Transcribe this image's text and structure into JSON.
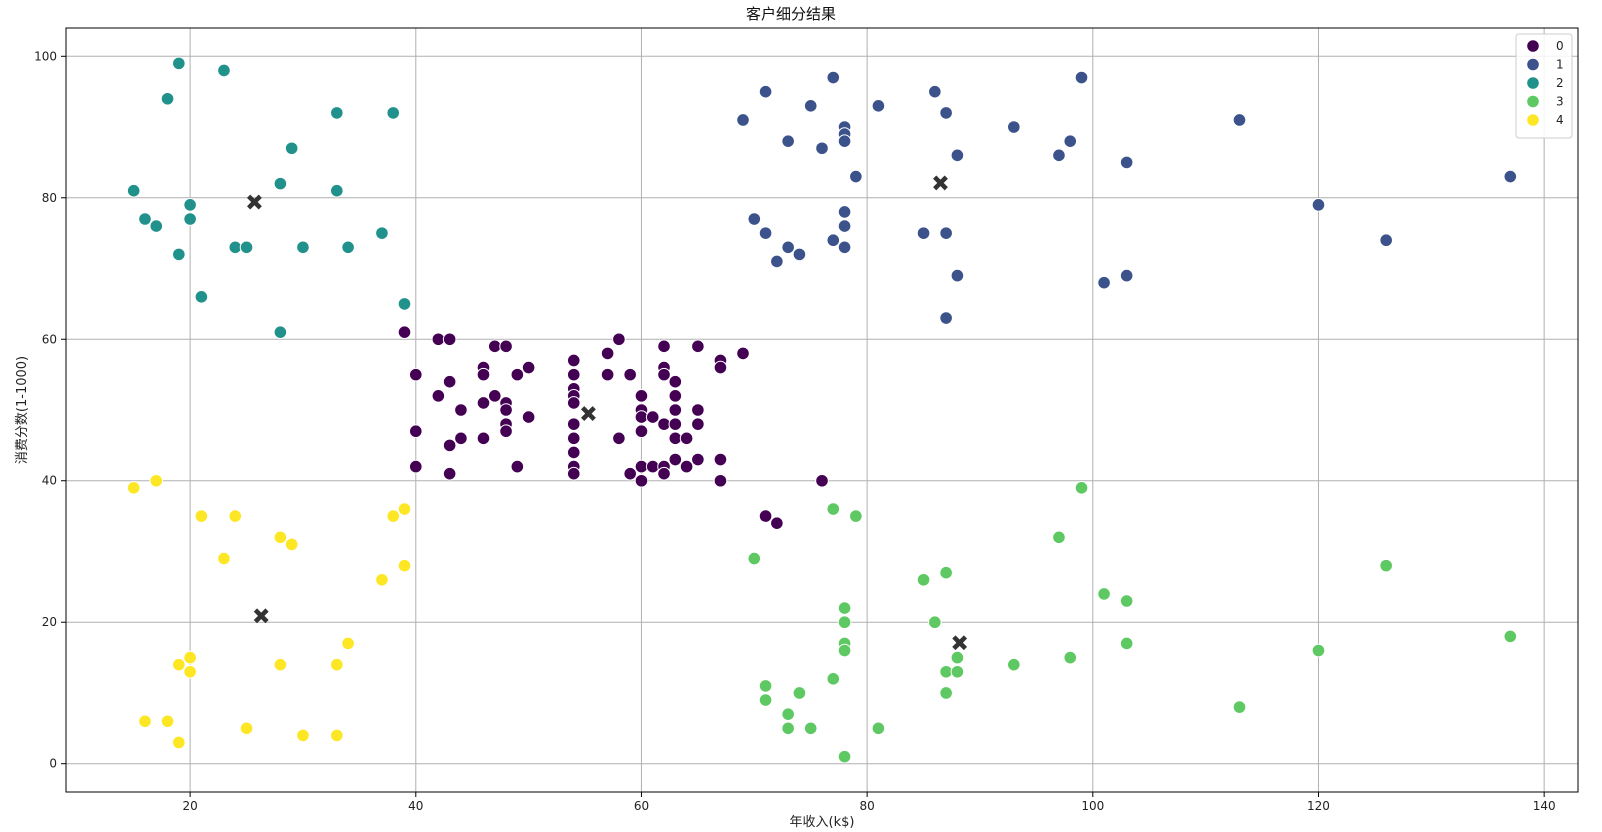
{
  "chart_data": {
    "type": "scatter",
    "title": "客户细分结果",
    "xlabel": "年收入(k$)",
    "ylabel": "消费分数(1-1000)",
    "xlim": [
      9,
      143
    ],
    "ylim": [
      -4,
      104
    ],
    "xticks": [
      20,
      40,
      60,
      80,
      100,
      120,
      140
    ],
    "yticks": [
      0,
      20,
      40,
      60,
      80,
      100
    ],
    "grid": true,
    "legend_position": "top-right",
    "series": [
      {
        "name": "0",
        "color": "#440154",
        "points": [
          [
            39,
            61
          ],
          [
            40,
            55
          ],
          [
            40,
            47
          ],
          [
            40,
            42
          ],
          [
            42,
            52
          ],
          [
            42,
            60
          ],
          [
            43,
            60
          ],
          [
            43,
            54
          ],
          [
            43,
            45
          ],
          [
            43,
            41
          ],
          [
            44,
            50
          ],
          [
            44,
            46
          ],
          [
            46,
            56
          ],
          [
            46,
            55
          ],
          [
            46,
            51
          ],
          [
            46,
            46
          ],
          [
            47,
            59
          ],
          [
            47,
            52
          ],
          [
            48,
            59
          ],
          [
            48,
            51
          ],
          [
            48,
            50
          ],
          [
            48,
            48
          ],
          [
            48,
            47
          ],
          [
            49,
            55
          ],
          [
            49,
            42
          ],
          [
            50,
            56
          ],
          [
            50,
            49
          ],
          [
            54,
            57
          ],
          [
            54,
            55
          ],
          [
            54,
            53
          ],
          [
            54,
            52
          ],
          [
            54,
            51
          ],
          [
            54,
            48
          ],
          [
            54,
            46
          ],
          [
            54,
            44
          ],
          [
            54,
            42
          ],
          [
            54,
            41
          ],
          [
            57,
            58
          ],
          [
            57,
            55
          ],
          [
            58,
            60
          ],
          [
            58,
            46
          ],
          [
            59,
            55
          ],
          [
            59,
            41
          ],
          [
            60,
            52
          ],
          [
            60,
            50
          ],
          [
            60,
            49
          ],
          [
            60,
            47
          ],
          [
            60,
            42
          ],
          [
            60,
            40
          ],
          [
            61,
            49
          ],
          [
            61,
            42
          ],
          [
            62,
            59
          ],
          [
            62,
            56
          ],
          [
            62,
            55
          ],
          [
            62,
            48
          ],
          [
            62,
            42
          ],
          [
            62,
            41
          ],
          [
            63,
            54
          ],
          [
            63,
            52
          ],
          [
            63,
            50
          ],
          [
            63,
            48
          ],
          [
            63,
            46
          ],
          [
            63,
            43
          ],
          [
            64,
            46
          ],
          [
            64,
            42
          ],
          [
            65,
            59
          ],
          [
            65,
            50
          ],
          [
            65,
            48
          ],
          [
            65,
            43
          ],
          [
            67,
            57
          ],
          [
            67,
            56
          ],
          [
            67,
            43
          ],
          [
            67,
            40
          ],
          [
            69,
            58
          ],
          [
            71,
            35
          ],
          [
            72,
            34
          ],
          [
            76,
            40
          ]
        ]
      },
      {
        "name": "1",
        "color": "#3b528b",
        "points": [
          [
            69,
            91
          ],
          [
            70,
            77
          ],
          [
            71,
            95
          ],
          [
            71,
            75
          ],
          [
            72,
            71
          ],
          [
            73,
            88
          ],
          [
            73,
            73
          ],
          [
            74,
            72
          ],
          [
            75,
            93
          ],
          [
            76,
            87
          ],
          [
            77,
            97
          ],
          [
            77,
            74
          ],
          [
            78,
            90
          ],
          [
            78,
            89
          ],
          [
            78,
            88
          ],
          [
            78,
            78
          ],
          [
            78,
            76
          ],
          [
            78,
            73
          ],
          [
            79,
            83
          ],
          [
            81,
            93
          ],
          [
            85,
            75
          ],
          [
            86,
            95
          ],
          [
            87,
            92
          ],
          [
            87,
            75
          ],
          [
            87,
            63
          ],
          [
            88,
            86
          ],
          [
            88,
            69
          ],
          [
            93,
            90
          ],
          [
            97,
            86
          ],
          [
            98,
            88
          ],
          [
            99,
            97
          ],
          [
            101,
            68
          ],
          [
            103,
            85
          ],
          [
            103,
            69
          ],
          [
            113,
            91
          ],
          [
            120,
            79
          ],
          [
            126,
            74
          ],
          [
            137,
            83
          ]
        ]
      },
      {
        "name": "2",
        "color": "#21918c",
        "points": [
          [
            15,
            81
          ],
          [
            16,
            77
          ],
          [
            17,
            76
          ],
          [
            18,
            94
          ],
          [
            19,
            99
          ],
          [
            19,
            72
          ],
          [
            20,
            79
          ],
          [
            20,
            77
          ],
          [
            21,
            66
          ],
          [
            23,
            98
          ],
          [
            24,
            73
          ],
          [
            25,
            73
          ],
          [
            28,
            82
          ],
          [
            28,
            61
          ],
          [
            29,
            87
          ],
          [
            30,
            73
          ],
          [
            33,
            92
          ],
          [
            33,
            81
          ],
          [
            34,
            73
          ],
          [
            37,
            75
          ],
          [
            38,
            92
          ],
          [
            39,
            65
          ]
        ]
      },
      {
        "name": "3",
        "color": "#5ec962",
        "points": [
          [
            70,
            29
          ],
          [
            71,
            11
          ],
          [
            71,
            9
          ],
          [
            73,
            7
          ],
          [
            73,
            5
          ],
          [
            74,
            10
          ],
          [
            75,
            5
          ],
          [
            77,
            36
          ],
          [
            77,
            12
          ],
          [
            78,
            22
          ],
          [
            78,
            20
          ],
          [
            78,
            17
          ],
          [
            78,
            16
          ],
          [
            78,
            1
          ],
          [
            79,
            35
          ],
          [
            81,
            5
          ],
          [
            85,
            26
          ],
          [
            86,
            20
          ],
          [
            87,
            27
          ],
          [
            87,
            13
          ],
          [
            87,
            10
          ],
          [
            88,
            15
          ],
          [
            88,
            13
          ],
          [
            93,
            14
          ],
          [
            97,
            32
          ],
          [
            98,
            15
          ],
          [
            99,
            39
          ],
          [
            101,
            24
          ],
          [
            103,
            23
          ],
          [
            103,
            17
          ],
          [
            113,
            8
          ],
          [
            120,
            16
          ],
          [
            126,
            28
          ],
          [
            137,
            18
          ]
        ]
      },
      {
        "name": "4",
        "color": "#fde725",
        "points": [
          [
            15,
            39
          ],
          [
            16,
            6
          ],
          [
            17,
            40
          ],
          [
            18,
            6
          ],
          [
            19,
            14
          ],
          [
            19,
            3
          ],
          [
            20,
            15
          ],
          [
            20,
            13
          ],
          [
            21,
            35
          ],
          [
            23,
            29
          ],
          [
            24,
            35
          ],
          [
            25,
            5
          ],
          [
            28,
            32
          ],
          [
            28,
            14
          ],
          [
            29,
            31
          ],
          [
            30,
            4
          ],
          [
            33,
            14
          ],
          [
            33,
            4
          ],
          [
            34,
            17
          ],
          [
            37,
            26
          ],
          [
            38,
            35
          ],
          [
            39,
            36
          ],
          [
            39,
            28
          ]
        ]
      }
    ],
    "centroids": {
      "color": "#333333",
      "marker": "x-filled",
      "points": [
        [
          55.3,
          49.5
        ],
        [
          86.5,
          82.1
        ],
        [
          25.7,
          79.4
        ],
        [
          88.2,
          17.1
        ],
        [
          26.3,
          20.9
        ]
      ]
    }
  }
}
